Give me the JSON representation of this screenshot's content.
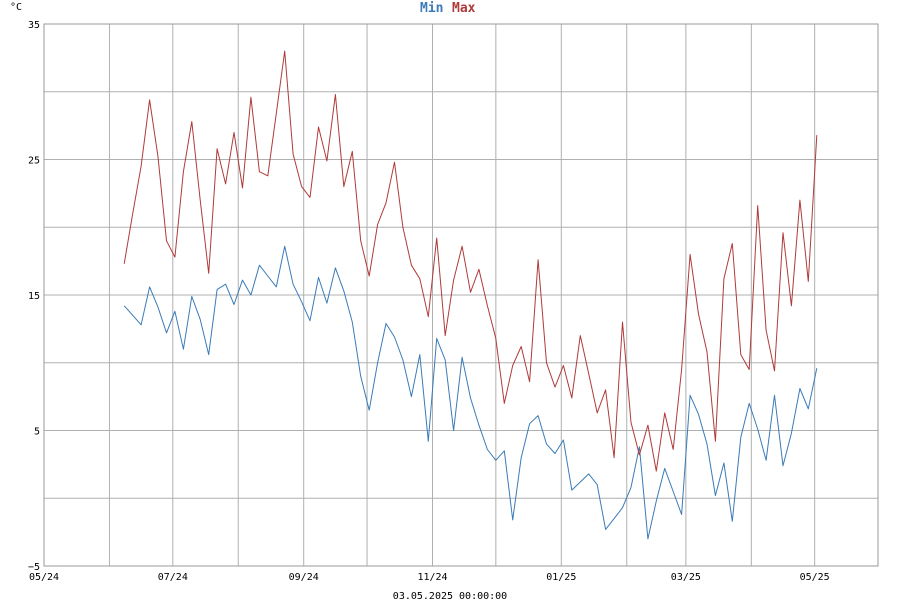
{
  "chart_data": {
    "type": "line",
    "unit_label": "°C",
    "footer": "03.05.2025 00:00:00",
    "grid": true,
    "legend_position": "top-center",
    "ylim": [
      -5,
      35
    ],
    "y_ticks": [
      -5,
      5,
      15,
      25,
      35
    ],
    "y_gridlines": [
      -5,
      0,
      5,
      10,
      15,
      20,
      25,
      30,
      35
    ],
    "xlim": [
      "2024-05-01",
      "2025-05-31"
    ],
    "x_gridlines": [
      "2024-06-01",
      "2024-07-01",
      "2024-08-01",
      "2024-09-01",
      "2024-10-01",
      "2024-11-01",
      "2024-12-01",
      "2025-01-01",
      "2025-02-01",
      "2025-03-01",
      "2025-04-01",
      "2025-05-01"
    ],
    "x_ticks": [
      {
        "date": "2024-05-01",
        "label": "05/24"
      },
      {
        "date": "2024-07-01",
        "label": "07/24"
      },
      {
        "date": "2024-09-01",
        "label": "09/24"
      },
      {
        "date": "2024-11-01",
        "label": "11/24"
      },
      {
        "date": "2025-01-01",
        "label": "01/25"
      },
      {
        "date": "2025-03-01",
        "label": "03/25"
      },
      {
        "date": "2025-05-01",
        "label": "05/25"
      }
    ],
    "series": [
      {
        "name": "Min",
        "color": "#3a7bb8",
        "points": [
          [
            "2024-06-08",
            14.2
          ],
          [
            "2024-06-12",
            13.5
          ],
          [
            "2024-06-16",
            12.8
          ],
          [
            "2024-06-20",
            15.6
          ],
          [
            "2024-06-24",
            14.1
          ],
          [
            "2024-06-28",
            12.2
          ],
          [
            "2024-07-02",
            13.8
          ],
          [
            "2024-07-06",
            11.0
          ],
          [
            "2024-07-10",
            14.9
          ],
          [
            "2024-07-14",
            13.2
          ],
          [
            "2024-07-18",
            10.6
          ],
          [
            "2024-07-22",
            15.4
          ],
          [
            "2024-07-26",
            15.8
          ],
          [
            "2024-07-30",
            14.3
          ],
          [
            "2024-08-03",
            16.1
          ],
          [
            "2024-08-07",
            15.0
          ],
          [
            "2024-08-11",
            17.2
          ],
          [
            "2024-08-15",
            16.4
          ],
          [
            "2024-08-19",
            15.6
          ],
          [
            "2024-08-23",
            18.6
          ],
          [
            "2024-08-27",
            15.8
          ],
          [
            "2024-08-31",
            14.5
          ],
          [
            "2024-09-04",
            13.1
          ],
          [
            "2024-09-08",
            16.3
          ],
          [
            "2024-09-12",
            14.4
          ],
          [
            "2024-09-16",
            17.0
          ],
          [
            "2024-09-20",
            15.3
          ],
          [
            "2024-09-24",
            13.0
          ],
          [
            "2024-09-28",
            9.0
          ],
          [
            "2024-10-02",
            6.5
          ],
          [
            "2024-10-06",
            10.0
          ],
          [
            "2024-10-10",
            12.9
          ],
          [
            "2024-10-14",
            11.9
          ],
          [
            "2024-10-18",
            10.2
          ],
          [
            "2024-10-22",
            7.5
          ],
          [
            "2024-10-26",
            10.6
          ],
          [
            "2024-10-30",
            4.2
          ],
          [
            "2024-11-03",
            11.8
          ],
          [
            "2024-11-07",
            10.2
          ],
          [
            "2024-11-11",
            5.0
          ],
          [
            "2024-11-15",
            10.4
          ],
          [
            "2024-11-19",
            7.4
          ],
          [
            "2024-11-23",
            5.4
          ],
          [
            "2024-11-27",
            3.6
          ],
          [
            "2024-12-01",
            2.8
          ],
          [
            "2024-12-05",
            3.5
          ],
          [
            "2024-12-09",
            -1.6
          ],
          [
            "2024-12-13",
            3.0
          ],
          [
            "2024-12-17",
            5.5
          ],
          [
            "2024-12-21",
            6.1
          ],
          [
            "2024-12-25",
            4.0
          ],
          [
            "2024-12-29",
            3.3
          ],
          [
            "2025-01-02",
            4.3
          ],
          [
            "2025-01-06",
            0.6
          ],
          [
            "2025-01-10",
            1.2
          ],
          [
            "2025-01-14",
            1.8
          ],
          [
            "2025-01-18",
            1.0
          ],
          [
            "2025-01-22",
            -2.3
          ],
          [
            "2025-01-26",
            -1.5
          ],
          [
            "2025-01-30",
            -0.7
          ],
          [
            "2025-02-03",
            0.8
          ],
          [
            "2025-02-07",
            3.8
          ],
          [
            "2025-02-11",
            -3.0
          ],
          [
            "2025-02-15",
            -0.2
          ],
          [
            "2025-02-19",
            2.2
          ],
          [
            "2025-02-23",
            0.5
          ],
          [
            "2025-02-27",
            -1.2
          ],
          [
            "2025-03-03",
            7.6
          ],
          [
            "2025-03-07",
            6.2
          ],
          [
            "2025-03-11",
            4.0
          ],
          [
            "2025-03-15",
            0.2
          ],
          [
            "2025-03-19",
            2.6
          ],
          [
            "2025-03-23",
            -1.7
          ],
          [
            "2025-03-27",
            4.5
          ],
          [
            "2025-03-31",
            7.0
          ],
          [
            "2025-04-04",
            5.1
          ],
          [
            "2025-04-08",
            2.8
          ],
          [
            "2025-04-12",
            7.6
          ],
          [
            "2025-04-16",
            2.4
          ],
          [
            "2025-04-20",
            4.8
          ],
          [
            "2025-04-24",
            8.1
          ],
          [
            "2025-04-28",
            6.6
          ],
          [
            "2025-05-02",
            9.6
          ]
        ]
      },
      {
        "name": "Max",
        "color": "#b03a3a",
        "points": [
          [
            "2024-06-08",
            17.3
          ],
          [
            "2024-06-12",
            21.0
          ],
          [
            "2024-06-16",
            24.5
          ],
          [
            "2024-06-20",
            29.4
          ],
          [
            "2024-06-24",
            25.2
          ],
          [
            "2024-06-28",
            19.0
          ],
          [
            "2024-07-02",
            17.8
          ],
          [
            "2024-07-06",
            24.1
          ],
          [
            "2024-07-10",
            27.8
          ],
          [
            "2024-07-14",
            22.0
          ],
          [
            "2024-07-18",
            16.6
          ],
          [
            "2024-07-22",
            25.8
          ],
          [
            "2024-07-26",
            23.2
          ],
          [
            "2024-07-30",
            27.0
          ],
          [
            "2024-08-03",
            22.9
          ],
          [
            "2024-08-07",
            29.6
          ],
          [
            "2024-08-11",
            24.1
          ],
          [
            "2024-08-15",
            23.8
          ],
          [
            "2024-08-19",
            28.4
          ],
          [
            "2024-08-23",
            33.0
          ],
          [
            "2024-08-27",
            25.4
          ],
          [
            "2024-08-31",
            23.0
          ],
          [
            "2024-09-04",
            22.2
          ],
          [
            "2024-09-08",
            27.4
          ],
          [
            "2024-09-12",
            24.9
          ],
          [
            "2024-09-16",
            29.8
          ],
          [
            "2024-09-20",
            23.0
          ],
          [
            "2024-09-24",
            25.6
          ],
          [
            "2024-09-28",
            19.0
          ],
          [
            "2024-10-02",
            16.4
          ],
          [
            "2024-10-06",
            20.2
          ],
          [
            "2024-10-10",
            21.8
          ],
          [
            "2024-10-14",
            24.8
          ],
          [
            "2024-10-18",
            20.0
          ],
          [
            "2024-10-22",
            17.2
          ],
          [
            "2024-10-26",
            16.2
          ],
          [
            "2024-10-30",
            13.4
          ],
          [
            "2024-11-03",
            19.2
          ],
          [
            "2024-11-07",
            12.0
          ],
          [
            "2024-11-11",
            16.1
          ],
          [
            "2024-11-15",
            18.6
          ],
          [
            "2024-11-19",
            15.2
          ],
          [
            "2024-11-23",
            16.9
          ],
          [
            "2024-11-27",
            14.2
          ],
          [
            "2024-12-01",
            11.8
          ],
          [
            "2024-12-05",
            7.0
          ],
          [
            "2024-12-09",
            9.8
          ],
          [
            "2024-12-13",
            11.2
          ],
          [
            "2024-12-17",
            8.6
          ],
          [
            "2024-12-21",
            17.6
          ],
          [
            "2024-12-25",
            10.0
          ],
          [
            "2024-12-29",
            8.2
          ],
          [
            "2025-01-02",
            9.8
          ],
          [
            "2025-01-06",
            7.4
          ],
          [
            "2025-01-10",
            12.0
          ],
          [
            "2025-01-14",
            9.2
          ],
          [
            "2025-01-18",
            6.3
          ],
          [
            "2025-01-22",
            8.0
          ],
          [
            "2025-01-26",
            3.0
          ],
          [
            "2025-01-30",
            13.0
          ],
          [
            "2025-02-03",
            5.6
          ],
          [
            "2025-02-07",
            3.2
          ],
          [
            "2025-02-11",
            5.4
          ],
          [
            "2025-02-15",
            2.0
          ],
          [
            "2025-02-19",
            6.3
          ],
          [
            "2025-02-23",
            3.6
          ],
          [
            "2025-02-27",
            9.5
          ],
          [
            "2025-03-03",
            18.0
          ],
          [
            "2025-03-07",
            13.6
          ],
          [
            "2025-03-11",
            10.8
          ],
          [
            "2025-03-15",
            4.2
          ],
          [
            "2025-03-19",
            16.2
          ],
          [
            "2025-03-23",
            18.8
          ],
          [
            "2025-03-27",
            10.6
          ],
          [
            "2025-03-31",
            9.5
          ],
          [
            "2025-04-04",
            21.6
          ],
          [
            "2025-04-08",
            12.4
          ],
          [
            "2025-04-12",
            9.4
          ],
          [
            "2025-04-16",
            19.6
          ],
          [
            "2025-04-20",
            14.2
          ],
          [
            "2025-04-24",
            22.0
          ],
          [
            "2025-04-28",
            16.0
          ],
          [
            "2025-05-02",
            26.8
          ]
        ]
      }
    ]
  }
}
